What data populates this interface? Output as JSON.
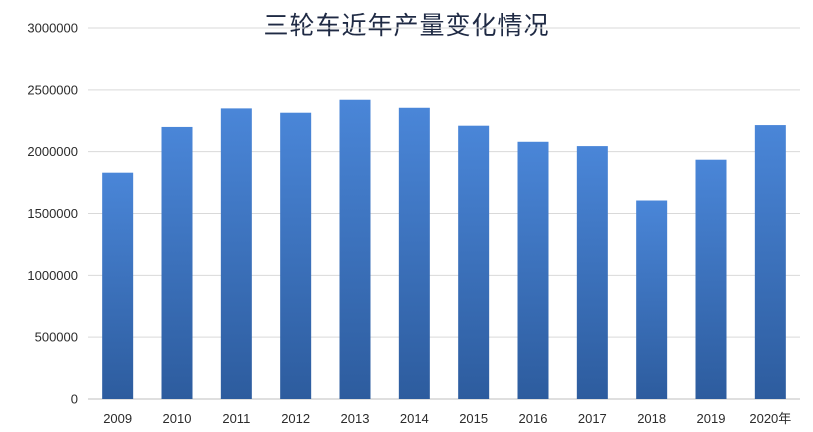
{
  "chart_data": {
    "type": "bar",
    "title": "三轮车近年产量变化情况",
    "categories": [
      "2009",
      "2010",
      "2011",
      "2012",
      "2013",
      "2014",
      "2015",
      "2016",
      "2017",
      "2018",
      "2019",
      "2020年"
    ],
    "values": [
      1830000,
      2200000,
      2350000,
      2315000,
      2420000,
      2355000,
      2210000,
      2080000,
      2045000,
      1605000,
      1935000,
      2215000
    ],
    "ylim": [
      0,
      3000000
    ],
    "yticks": [
      "0",
      "500000",
      "1000000",
      "1500000",
      "2000000",
      "2500000",
      "3000000"
    ],
    "grid": true,
    "legend": "none",
    "colors": {
      "bar_top": "#4a86d8",
      "bar_bottom": "#2d5c9e"
    }
  }
}
